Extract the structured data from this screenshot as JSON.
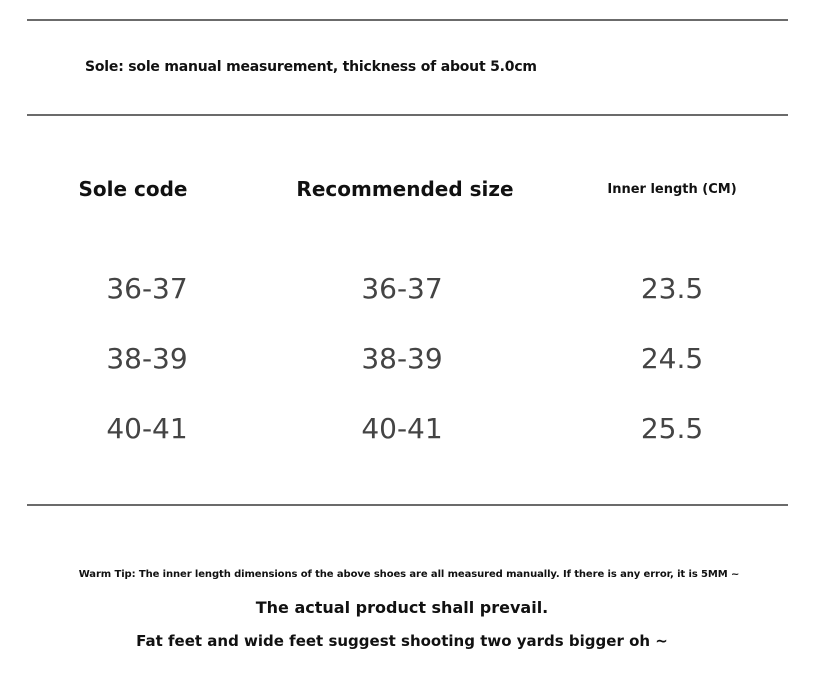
{
  "sole_note": "Sole: sole manual measurement, thickness of about 5.0cm",
  "table": {
    "headers": [
      "Sole code",
      "Recommended size",
      "Inner length (CM)"
    ],
    "rows": [
      [
        "36-37",
        "36-37",
        "23.5"
      ],
      [
        "38-39",
        "38-39",
        "24.5"
      ],
      [
        "40-41",
        "40-41",
        "25.5"
      ]
    ]
  },
  "tips": {
    "line1": "Warm Tip: The inner length dimensions of the above shoes are all measured manually. If there is any error, it is 5MM ~",
    "line2": "The actual product shall prevail.",
    "line3": "Fat feet and wide feet suggest shooting two yards bigger oh ~"
  },
  "colors": {
    "rule": "#6b6b6b",
    "text_dark": "#111111",
    "text_values": "#444444"
  }
}
